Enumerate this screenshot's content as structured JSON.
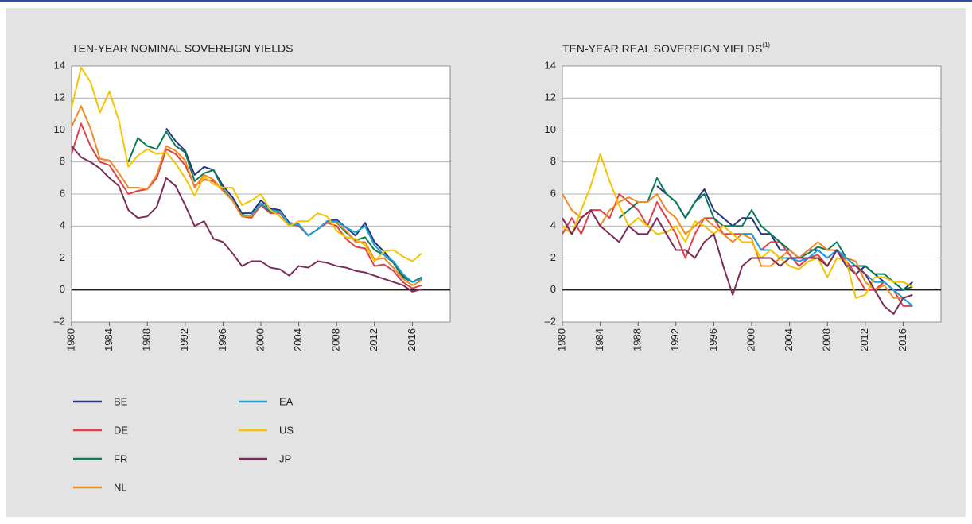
{
  "chart_data": [
    {
      "type": "line",
      "title": "TEN-YEAR NOMINAL SOVEREIGN YIELDS",
      "x": [
        1980,
        1981,
        1982,
        1983,
        1984,
        1985,
        1986,
        1987,
        1988,
        1989,
        1990,
        1991,
        1992,
        1993,
        1994,
        1995,
        1996,
        1997,
        1998,
        1999,
        2000,
        2001,
        2002,
        2003,
        2004,
        2005,
        2006,
        2007,
        2008,
        2009,
        2010,
        2011,
        2012,
        2013,
        2014,
        2015,
        2016,
        2017
      ],
      "xlim": [
        1980,
        2020
      ],
      "xticks": [
        1980,
        1984,
        1988,
        1992,
        1996,
        2000,
        2004,
        2008,
        2012,
        2016
      ],
      "ylim": [
        -2,
        14
      ],
      "yticks": [
        {
          "value": -2,
          "label": "–2"
        },
        0,
        2,
        4,
        6,
        8,
        10,
        12,
        14
      ],
      "grid": true,
      "series": [
        {
          "name": "BE",
          "color": "#27367a",
          "values": [
            null,
            null,
            null,
            null,
            null,
            null,
            null,
            null,
            null,
            null,
            10.1,
            9.3,
            8.7,
            7.2,
            7.7,
            7.5,
            6.5,
            5.8,
            4.8,
            4.8,
            5.6,
            5.1,
            5.0,
            4.2,
            4.1,
            3.4,
            3.8,
            4.3,
            4.4,
            3.9,
            3.4,
            4.2,
            3.0,
            2.4,
            1.7,
            0.9,
            0.5,
            0.7
          ]
        },
        {
          "name": "DE",
          "color": "#e0404a",
          "values": [
            8.5,
            10.4,
            9.0,
            8.0,
            7.8,
            6.9,
            6.0,
            6.2,
            6.3,
            7.0,
            8.8,
            8.5,
            7.8,
            6.5,
            6.9,
            6.8,
            6.2,
            5.6,
            4.6,
            4.5,
            5.3,
            4.8,
            4.8,
            4.1,
            4.0,
            3.4,
            3.8,
            4.2,
            4.0,
            3.2,
            2.7,
            2.6,
            1.5,
            1.6,
            1.2,
            0.5,
            0.1,
            0.3
          ]
        },
        {
          "name": "FR",
          "color": "#0b7a5a",
          "values": [
            null,
            null,
            null,
            null,
            null,
            null,
            8.0,
            9.5,
            9.0,
            8.8,
            9.9,
            9.0,
            8.6,
            6.8,
            7.3,
            7.5,
            6.3,
            5.6,
            4.7,
            4.6,
            5.4,
            4.9,
            4.9,
            4.1,
            4.1,
            3.4,
            3.8,
            4.3,
            4.2,
            3.6,
            3.1,
            3.3,
            2.5,
            2.2,
            1.7,
            0.8,
            0.5,
            0.8
          ]
        },
        {
          "name": "NL",
          "color": "#f08a24",
          "values": [
            10.2,
            11.5,
            10.1,
            8.2,
            8.1,
            7.3,
            6.4,
            6.4,
            6.3,
            7.2,
            9.0,
            8.7,
            8.1,
            6.4,
            7.2,
            6.9,
            6.2,
            5.6,
            4.6,
            4.6,
            5.4,
            5.0,
            4.9,
            4.1,
            4.1,
            3.4,
            3.8,
            4.3,
            4.2,
            3.7,
            3.0,
            3.0,
            1.9,
            2.0,
            1.4,
            0.7,
            0.3,
            0.6
          ]
        },
        {
          "name": "EA",
          "color": "#1aa0dc",
          "values": [
            null,
            null,
            null,
            null,
            null,
            null,
            null,
            null,
            null,
            null,
            null,
            null,
            null,
            null,
            null,
            null,
            null,
            null,
            null,
            4.7,
            5.4,
            5.0,
            4.9,
            4.1,
            4.1,
            3.4,
            3.8,
            4.3,
            4.3,
            3.9,
            3.6,
            4.0,
            2.8,
            2.2,
            1.8,
            1.0,
            0.5,
            0.7
          ]
        },
        {
          "name": "US",
          "color": "#f5c400",
          "values": [
            11.4,
            13.9,
            13.0,
            11.1,
            12.4,
            10.6,
            7.7,
            8.4,
            8.8,
            8.5,
            8.6,
            7.9,
            7.0,
            5.9,
            7.1,
            6.6,
            6.4,
            6.4,
            5.3,
            5.6,
            6.0,
            5.0,
            4.6,
            4.0,
            4.3,
            4.3,
            4.8,
            4.6,
            3.7,
            3.3,
            3.2,
            2.8,
            1.8,
            2.4,
            2.5,
            2.1,
            1.8,
            2.3
          ]
        },
        {
          "name": "JP",
          "color": "#7b2d5a",
          "values": [
            9.0,
            8.3,
            8.0,
            7.6,
            7.0,
            6.5,
            5.0,
            4.5,
            4.6,
            5.2,
            7.0,
            6.5,
            5.3,
            4.0,
            4.3,
            3.2,
            3.0,
            2.3,
            1.5,
            1.8,
            1.8,
            1.4,
            1.3,
            0.9,
            1.5,
            1.4,
            1.8,
            1.7,
            1.5,
            1.4,
            1.2,
            1.1,
            0.9,
            0.7,
            0.5,
            0.3,
            -0.1,
            0.05
          ]
        }
      ]
    },
    {
      "type": "line",
      "title": "TEN-YEAR REAL SOVEREIGN YIELDS",
      "title_note": "(1)",
      "x": [
        1980,
        1981,
        1982,
        1983,
        1984,
        1985,
        1986,
        1987,
        1988,
        1989,
        1990,
        1991,
        1992,
        1993,
        1994,
        1995,
        1996,
        1997,
        1998,
        1999,
        2000,
        2001,
        2002,
        2003,
        2004,
        2005,
        2006,
        2007,
        2008,
        2009,
        2010,
        2011,
        2012,
        2013,
        2014,
        2015,
        2016,
        2017
      ],
      "xlim": [
        1980,
        2020
      ],
      "xticks": [
        1980,
        1984,
        1988,
        1992,
        1996,
        2000,
        2004,
        2008,
        2012,
        2016
      ],
      "ylim": [
        -2,
        14
      ],
      "yticks": [
        {
          "value": -2,
          "label": "–2"
        },
        0,
        2,
        4,
        6,
        8,
        10,
        12,
        14
      ],
      "grid": true,
      "series": [
        {
          "name": "BE",
          "color": "#27367a",
          "values": [
            null,
            null,
            null,
            null,
            null,
            null,
            null,
            null,
            null,
            null,
            6.5,
            6.0,
            5.5,
            4.5,
            5.5,
            6.3,
            5.0,
            4.5,
            4.0,
            4.5,
            4.5,
            3.5,
            3.5,
            2.5,
            2.5,
            2.0,
            2.5,
            2.5,
            2.0,
            2.5,
            1.5,
            1.0,
            1.5,
            1.0,
            0.5,
            0.0,
            0.0,
            0.5
          ]
        },
        {
          "name": "DE",
          "color": "#e0404a",
          "values": [
            3.5,
            4.5,
            3.5,
            5.0,
            5.0,
            4.5,
            6.0,
            5.5,
            5.0,
            4.0,
            5.5,
            4.5,
            3.5,
            2.0,
            3.5,
            4.5,
            4.5,
            3.5,
            3.5,
            3.5,
            3.5,
            2.5,
            3.0,
            3.0,
            2.2,
            1.5,
            2.0,
            2.2,
            1.5,
            2.5,
            1.8,
            1.0,
            0.0,
            0.0,
            0.5,
            0.0,
            -1.0,
            -1.0
          ]
        },
        {
          "name": "FR",
          "color": "#0b7a5a",
          "values": [
            null,
            null,
            null,
            null,
            null,
            null,
            4.5,
            5.0,
            5.5,
            5.5,
            7.0,
            6.0,
            5.5,
            4.5,
            5.5,
            6.0,
            4.5,
            4.0,
            4.0,
            4.0,
            5.0,
            4.0,
            3.5,
            3.0,
            2.5,
            2.0,
            2.3,
            2.7,
            2.5,
            3.0,
            2.0,
            1.5,
            1.5,
            1.0,
            1.0,
            0.5,
            0.0,
            0.2
          ]
        },
        {
          "name": "NL",
          "color": "#f08a24",
          "values": [
            6.0,
            5.0,
            4.5,
            5.0,
            4.0,
            5.0,
            5.5,
            5.8,
            5.5,
            5.5,
            6.0,
            5.0,
            4.5,
            3.5,
            4.0,
            4.5,
            4.0,
            3.5,
            3.0,
            3.5,
            3.2,
            1.5,
            1.5,
            2.0,
            2.5,
            2.0,
            2.5,
            3.0,
            2.5,
            2.5,
            2.0,
            1.8,
            0.5,
            0.0,
            0.3,
            -0.5,
            -0.5,
            -0.3
          ]
        },
        {
          "name": "EA",
          "color": "#1aa0dc",
          "values": [
            null,
            null,
            null,
            null,
            null,
            null,
            null,
            null,
            null,
            null,
            null,
            null,
            null,
            null,
            null,
            null,
            null,
            null,
            null,
            3.5,
            3.5,
            2.5,
            2.5,
            2.0,
            2.0,
            1.8,
            2.0,
            2.5,
            2.0,
            2.5,
            2.0,
            1.5,
            1.0,
            0.5,
            0.5,
            0.0,
            -0.5,
            -1.0
          ]
        },
        {
          "name": "US",
          "color": "#f5c400",
          "values": [
            4.0,
            3.5,
            5.0,
            6.5,
            8.5,
            6.8,
            5.3,
            4.0,
            4.5,
            4.0,
            3.5,
            3.6,
            4.0,
            3.0,
            4.3,
            4.0,
            3.5,
            4.0,
            3.5,
            3.0,
            3.0,
            2.0,
            2.5,
            2.0,
            1.5,
            1.3,
            1.8,
            2.0,
            0.8,
            2.0,
            1.8,
            -0.5,
            -0.3,
            0.8,
            0.8,
            0.5,
            0.5,
            0.2
          ]
        },
        {
          "name": "JP",
          "color": "#7b2d5a",
          "values": [
            4.5,
            3.5,
            4.5,
            5.0,
            4.0,
            3.5,
            3.0,
            4.0,
            3.5,
            3.5,
            4.5,
            3.5,
            2.5,
            2.5,
            2.0,
            3.0,
            3.5,
            1.5,
            -0.3,
            1.5,
            2.0,
            2.0,
            2.0,
            1.5,
            2.0,
            2.0,
            2.0,
            2.0,
            1.5,
            2.5,
            1.5,
            1.5,
            1.0,
            0.0,
            -1.0,
            -1.5,
            -0.5,
            -0.3
          ]
        }
      ]
    }
  ]
}
